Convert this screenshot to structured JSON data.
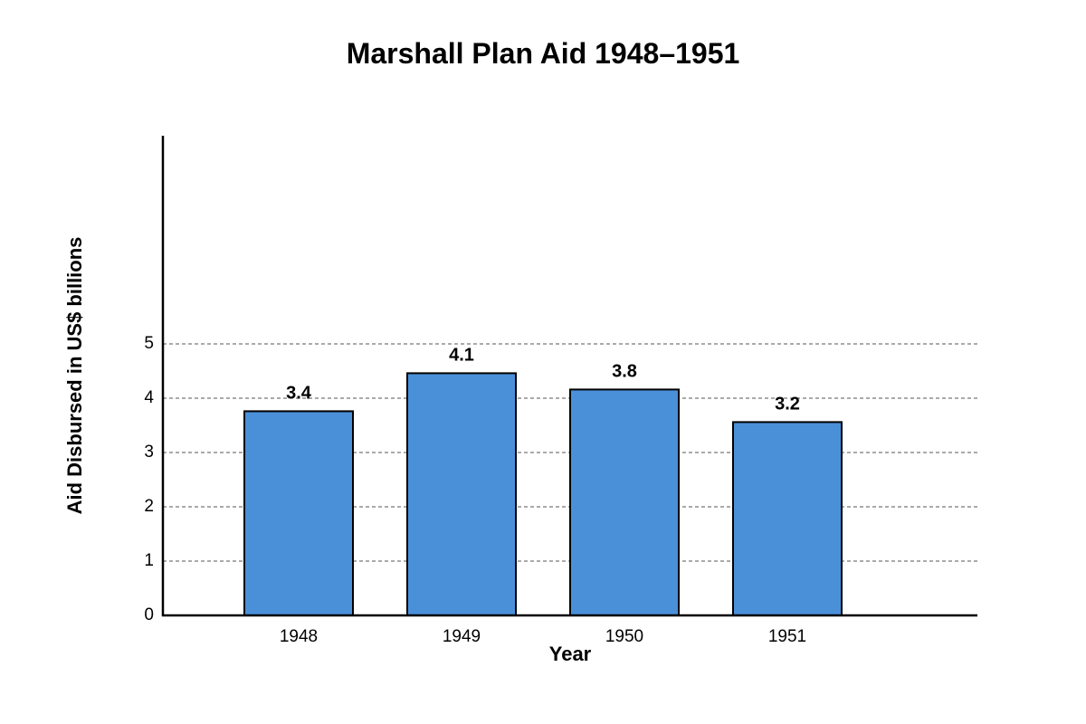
{
  "chart_data": {
    "type": "bar",
    "title": "Marshall Plan Aid 1948–1951",
    "xlabel": "Year",
    "ylabel": "Aid Disbursed in US$ billions",
    "categories": [
      "1948",
      "1949",
      "1950",
      "1951"
    ],
    "values": [
      3.4,
      4.1,
      3.8,
      3.2
    ],
    "data_labels": [
      "3.4",
      "4.1",
      "3.8",
      "3.2"
    ],
    "yticks": [
      0,
      1,
      2,
      3,
      4,
      5
    ],
    "ytick_labels": [
      "0",
      "1",
      "2",
      "3",
      "4",
      "5"
    ],
    "grid": true,
    "legend": "none",
    "bar_color": "#4A90D9",
    "bar_edge_color": "#000000"
  }
}
